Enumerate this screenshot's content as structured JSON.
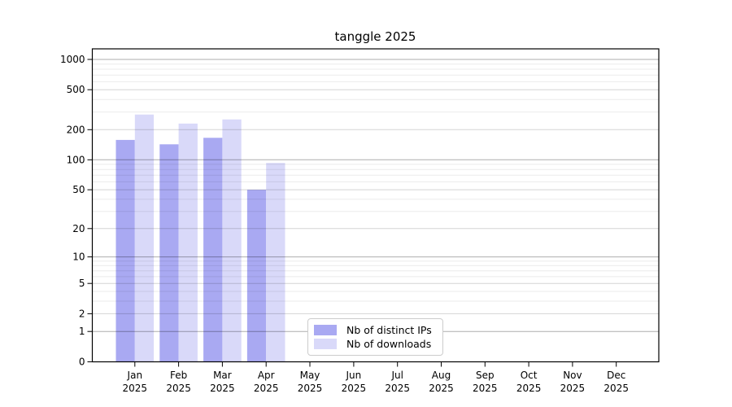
{
  "chart_data": {
    "type": "bar",
    "title": "tanggle 2025",
    "year_label": "2025",
    "categories": [
      "Jan",
      "Feb",
      "Mar",
      "Apr",
      "May",
      "Jun",
      "Jul",
      "Aug",
      "Sep",
      "Oct",
      "Nov",
      "Dec"
    ],
    "series": [
      {
        "name": "Nb of distinct IPs",
        "color": "#a9a9f2",
        "values": [
          158,
          143,
          166,
          50,
          0,
          0,
          0,
          0,
          0,
          0,
          0,
          0
        ]
      },
      {
        "name": "Nb of downloads",
        "color": "#d9d9f9",
        "values": [
          283,
          230,
          253,
          93,
          0,
          0,
          0,
          0,
          0,
          0,
          0,
          0
        ]
      }
    ],
    "xlabel": "",
    "ylabel": "",
    "yscale": "log10(value+1)",
    "ylim": [
      0,
      1270
    ],
    "y_ticks": [
      0,
      1,
      2,
      5,
      10,
      20,
      50,
      100,
      200,
      500,
      1000
    ],
    "y_minor_ticks": [
      3,
      4,
      6,
      7,
      8,
      9,
      30,
      40,
      60,
      70,
      80,
      90,
      300,
      400,
      600,
      700,
      800,
      900
    ],
    "grid": "both",
    "legend_position": "inside-bottom-left-of-center",
    "colors": {
      "spine": "#000000",
      "grid_major": "rgba(0,0,0,0.32)",
      "grid_mid": "rgba(0,0,0,0.17)",
      "grid_minor": "rgba(0,0,0,0.08)",
      "background": "#ffffff"
    }
  }
}
